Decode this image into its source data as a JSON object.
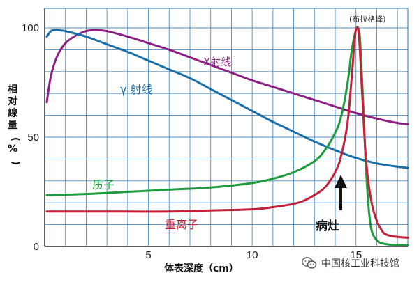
{
  "chart_data": {
    "type": "line",
    "xlabel": "体表深度（cm）",
    "ylabel": "相对線量（%）",
    "xlim": [
      0,
      17.5
    ],
    "ylim": [
      0,
      100
    ],
    "x_ticks": [
      5,
      10,
      15
    ],
    "y_ticks": [
      0,
      50,
      100
    ],
    "grid": true,
    "series": [
      {
        "name": "X射线",
        "color": "#8e1f84",
        "x": [
          0.1,
          0.3,
          0.6,
          1.0,
          1.5,
          2.0,
          2.4,
          3.0,
          4.0,
          5.0,
          6.0,
          7.0,
          8.0,
          9.0,
          10.0,
          11.0,
          12.0,
          13.0,
          14.0,
          15.0,
          16.0,
          17.0,
          17.5
        ],
        "y": [
          66,
          78,
          87,
          93,
          96.5,
          98.5,
          99,
          98.5,
          96,
          93,
          90,
          86.5,
          83,
          79.5,
          76,
          73,
          70,
          67,
          64,
          61,
          58.5,
          56.5,
          56
        ]
      },
      {
        "name": "γ射线",
        "color": "#1b6fa8",
        "x": [
          0.1,
          0.3,
          0.5,
          0.8,
          1.0,
          2.0,
          3.0,
          4.0,
          5.0,
          6.0,
          7.0,
          8.0,
          9.0,
          10.0,
          11.0,
          12.0,
          13.0,
          14.0,
          15.0,
          16.0,
          17.0,
          17.5
        ],
        "y": [
          96,
          98.5,
          99,
          98.8,
          98.5,
          96,
          92.5,
          89,
          85,
          81,
          77,
          72,
          67,
          62,
          57,
          52.5,
          48,
          44,
          40.5,
          38,
          36.5,
          36
        ]
      },
      {
        "name": "质子",
        "color": "#1e9b3c",
        "x": [
          0.1,
          2.0,
          4.0,
          6.0,
          8.0,
          10.0,
          11.0,
          12.0,
          13.0,
          13.5,
          14.0,
          14.3,
          14.6,
          14.8,
          15.0,
          15.1,
          15.2,
          15.35,
          15.5,
          15.7,
          16.0,
          16.5,
          17.5
        ],
        "y": [
          23.5,
          24,
          25,
          26,
          27,
          29,
          31,
          34,
          39,
          44,
          52,
          60,
          75,
          90,
          99,
          100,
          94,
          65,
          33,
          10,
          3,
          1,
          0.5
        ]
      },
      {
        "name": "重离子",
        "color": "#c4203a",
        "x": [
          0.1,
          2.0,
          4.0,
          6.0,
          8.0,
          10.0,
          11.0,
          12.0,
          12.5,
          13.0,
          13.5,
          14.0,
          14.3,
          14.6,
          14.8,
          14.95,
          15.05,
          15.15,
          15.3,
          15.5,
          15.8,
          16.2,
          16.6,
          17.5
        ],
        "y": [
          16,
          16,
          16,
          16,
          16.5,
          17,
          18,
          19.5,
          21,
          23.5,
          27,
          34,
          42,
          57,
          78,
          96,
          100,
          96,
          70,
          38,
          18,
          8,
          5,
          4
        ]
      }
    ],
    "annotations": [
      {
        "text": "X射线",
        "color": "#8e1f84"
      },
      {
        "text": "γ 射线",
        "color": "#1b6fa8"
      },
      {
        "text": "质子",
        "color": "#1e9b3c"
      },
      {
        "text": "重离子",
        "color": "#c4203a"
      },
      {
        "text": "(布拉格峰)",
        "color": "#222222"
      },
      {
        "text": "病灶",
        "color": "#111111"
      }
    ]
  },
  "watermark": {
    "text": "中国核工业科技馆",
    "icon": "wechat-icon"
  },
  "colors": {
    "grid": "#4b8fc6",
    "axis": "#333333",
    "frame": "#4b8fc6"
  }
}
